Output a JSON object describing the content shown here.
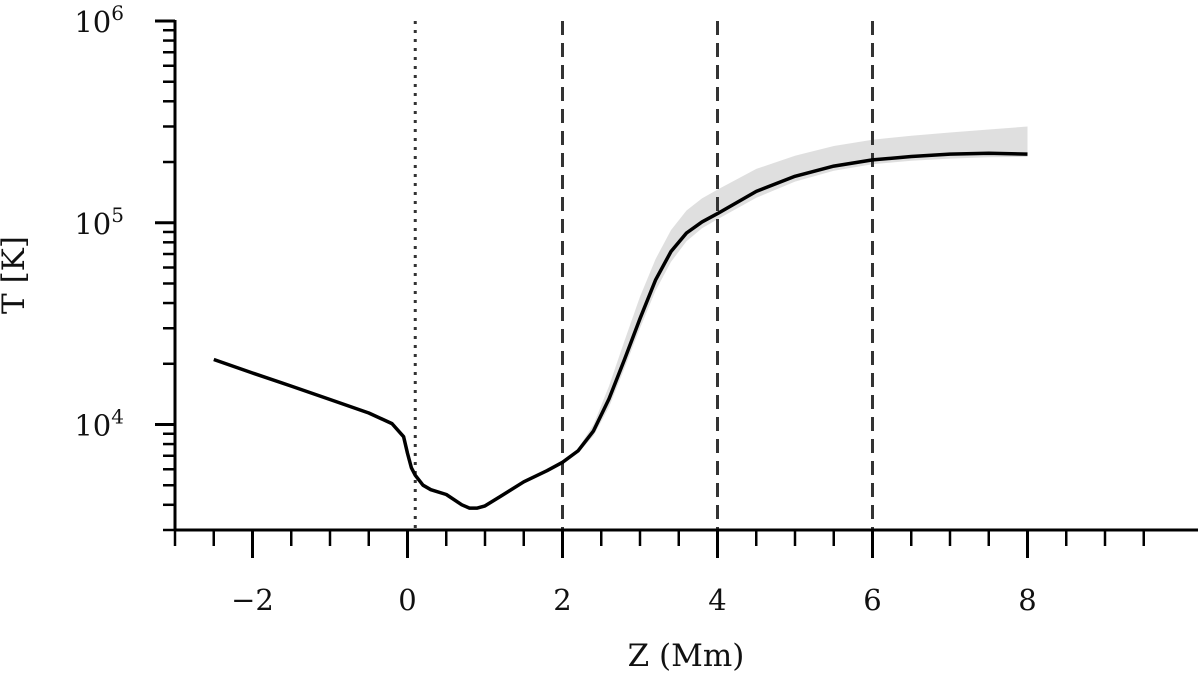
{
  "chart_data": {
    "type": "line",
    "title": "",
    "xlabel": "Z (Mm)",
    "ylabel": "T [K]",
    "xlim": [
      -3.0,
      10.2
    ],
    "ylim": [
      3000,
      1000000
    ],
    "yscale": "log",
    "x_ticks": [
      {
        "value": -2,
        "label": "−2"
      },
      {
        "value": 0,
        "label": "0"
      },
      {
        "value": 2,
        "label": "2"
      },
      {
        "value": 4,
        "label": "4"
      },
      {
        "value": 6,
        "label": "6"
      },
      {
        "value": 8,
        "label": "8"
      }
    ],
    "y_ticks": [
      {
        "value": 10000,
        "base": "10",
        "exp": "4"
      },
      {
        "value": 100000,
        "base": "10",
        "exp": "5"
      },
      {
        "value": 1000000,
        "base": "10",
        "exp": "6"
      }
    ],
    "grid": false,
    "vlines": [
      {
        "x": 0.1,
        "style": "dotted"
      },
      {
        "x": 2,
        "style": "dashed"
      },
      {
        "x": 4,
        "style": "dashed"
      },
      {
        "x": 6,
        "style": "dashed"
      }
    ],
    "series": [
      {
        "color": "#000000",
        "x": [
          -2.5,
          -2.0,
          -1.5,
          -1.0,
          -0.5,
          -0.2,
          -0.05,
          0.0,
          0.05,
          0.1,
          0.2,
          0.3,
          0.5,
          0.7,
          0.8,
          0.9,
          1.0,
          1.2,
          1.5,
          1.8,
          2.0,
          2.2,
          2.4,
          2.6,
          2.8,
          3.0,
          3.2,
          3.4,
          3.6,
          3.8,
          4.0,
          4.5,
          5.0,
          5.5,
          6.0,
          6.5,
          7.0,
          7.5,
          8.0
        ],
        "y": [
          21000,
          18000,
          15500,
          13300,
          11400,
          10100,
          8700,
          7200,
          6100,
          5600,
          5000,
          4750,
          4500,
          4000,
          3850,
          3850,
          3950,
          4400,
          5200,
          5900,
          6500,
          7400,
          9300,
          13400,
          21000,
          33500,
          52000,
          72000,
          89000,
          101000,
          111000,
          143000,
          170000,
          191000,
          205000,
          213000,
          219000,
          221000,
          219000
        ]
      }
    ],
    "envelope": {
      "color": "#d9d9d9",
      "x": [
        2.2,
        2.4,
        2.6,
        2.8,
        3.0,
        3.2,
        3.4,
        3.6,
        3.8,
        4.0,
        4.5,
        5.0,
        5.5,
        6.0,
        6.5,
        7.0,
        7.5,
        8.0
      ],
      "upper": [
        7600,
        10000,
        15500,
        26000,
        43000,
        66000,
        92000,
        115000,
        132000,
        146000,
        185000,
        215000,
        240000,
        258000,
        270000,
        280000,
        290000,
        300000
      ],
      "lower": [
        7200,
        8800,
        12200,
        19000,
        30000,
        46000,
        64000,
        81000,
        94000,
        104000,
        133000,
        160000,
        181000,
        195000,
        203000,
        208000,
        211000,
        212000
      ]
    }
  }
}
